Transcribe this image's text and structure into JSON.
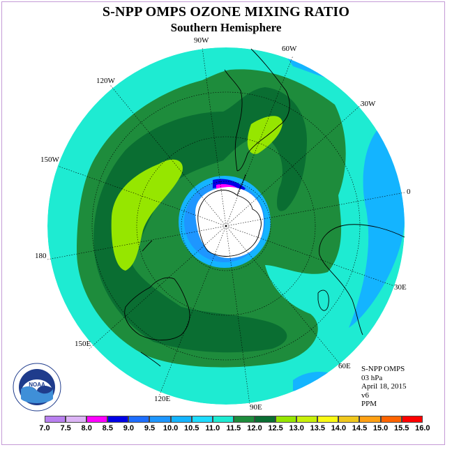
{
  "header": {
    "title": "S-NPP OMPS OZONE MIXING RATIO",
    "subtitle": "Southern Hemisphere"
  },
  "map": {
    "projection": "polar stereographic",
    "hemisphere": "south",
    "longitude_labels": [
      "90W",
      "60W",
      "30W",
      "0",
      "30E",
      "60E",
      "90E",
      "120E",
      "150E",
      "180",
      "150W",
      "120W"
    ],
    "colors": {
      "land_outline": "#000000",
      "graticule": "#000000",
      "polar_missing": "#ffffff"
    }
  },
  "info": {
    "instrument": "S-NPP OMPS",
    "pressure": "03 hPa",
    "date": "April 18, 2015",
    "version": "v6",
    "units": "PPM"
  },
  "colorbar": {
    "labels": [
      "7.0",
      "7.5",
      "8.0",
      "8.5",
      "9.0",
      "9.5",
      "10.0",
      "10.5",
      "11.0",
      "11.5",
      "12.0",
      "12.5",
      "13.0",
      "13.5",
      "14.0",
      "14.5",
      "15.0",
      "15.5",
      "16.0"
    ],
    "colors": [
      "#b980f0",
      "#dcb4f5",
      "#ff00ff",
      "#0000e6",
      "#1e6eff",
      "#1e96ff",
      "#14b4ff",
      "#1edcff",
      "#1eebd2",
      "#1e8c3c",
      "#0a6e32",
      "#96e600",
      "#c8f00a",
      "#fafa14",
      "#f0c81e",
      "#ffa014",
      "#ff6400",
      "#ff0000",
      "#825a3c"
    ]
  },
  "logo": {
    "text": "NOAA",
    "ring_text": "NATIONAL OCEANIC AND ATMOSPHERIC ADMINISTRATION · U.S. DEPARTMENT OF COMMERCE"
  }
}
